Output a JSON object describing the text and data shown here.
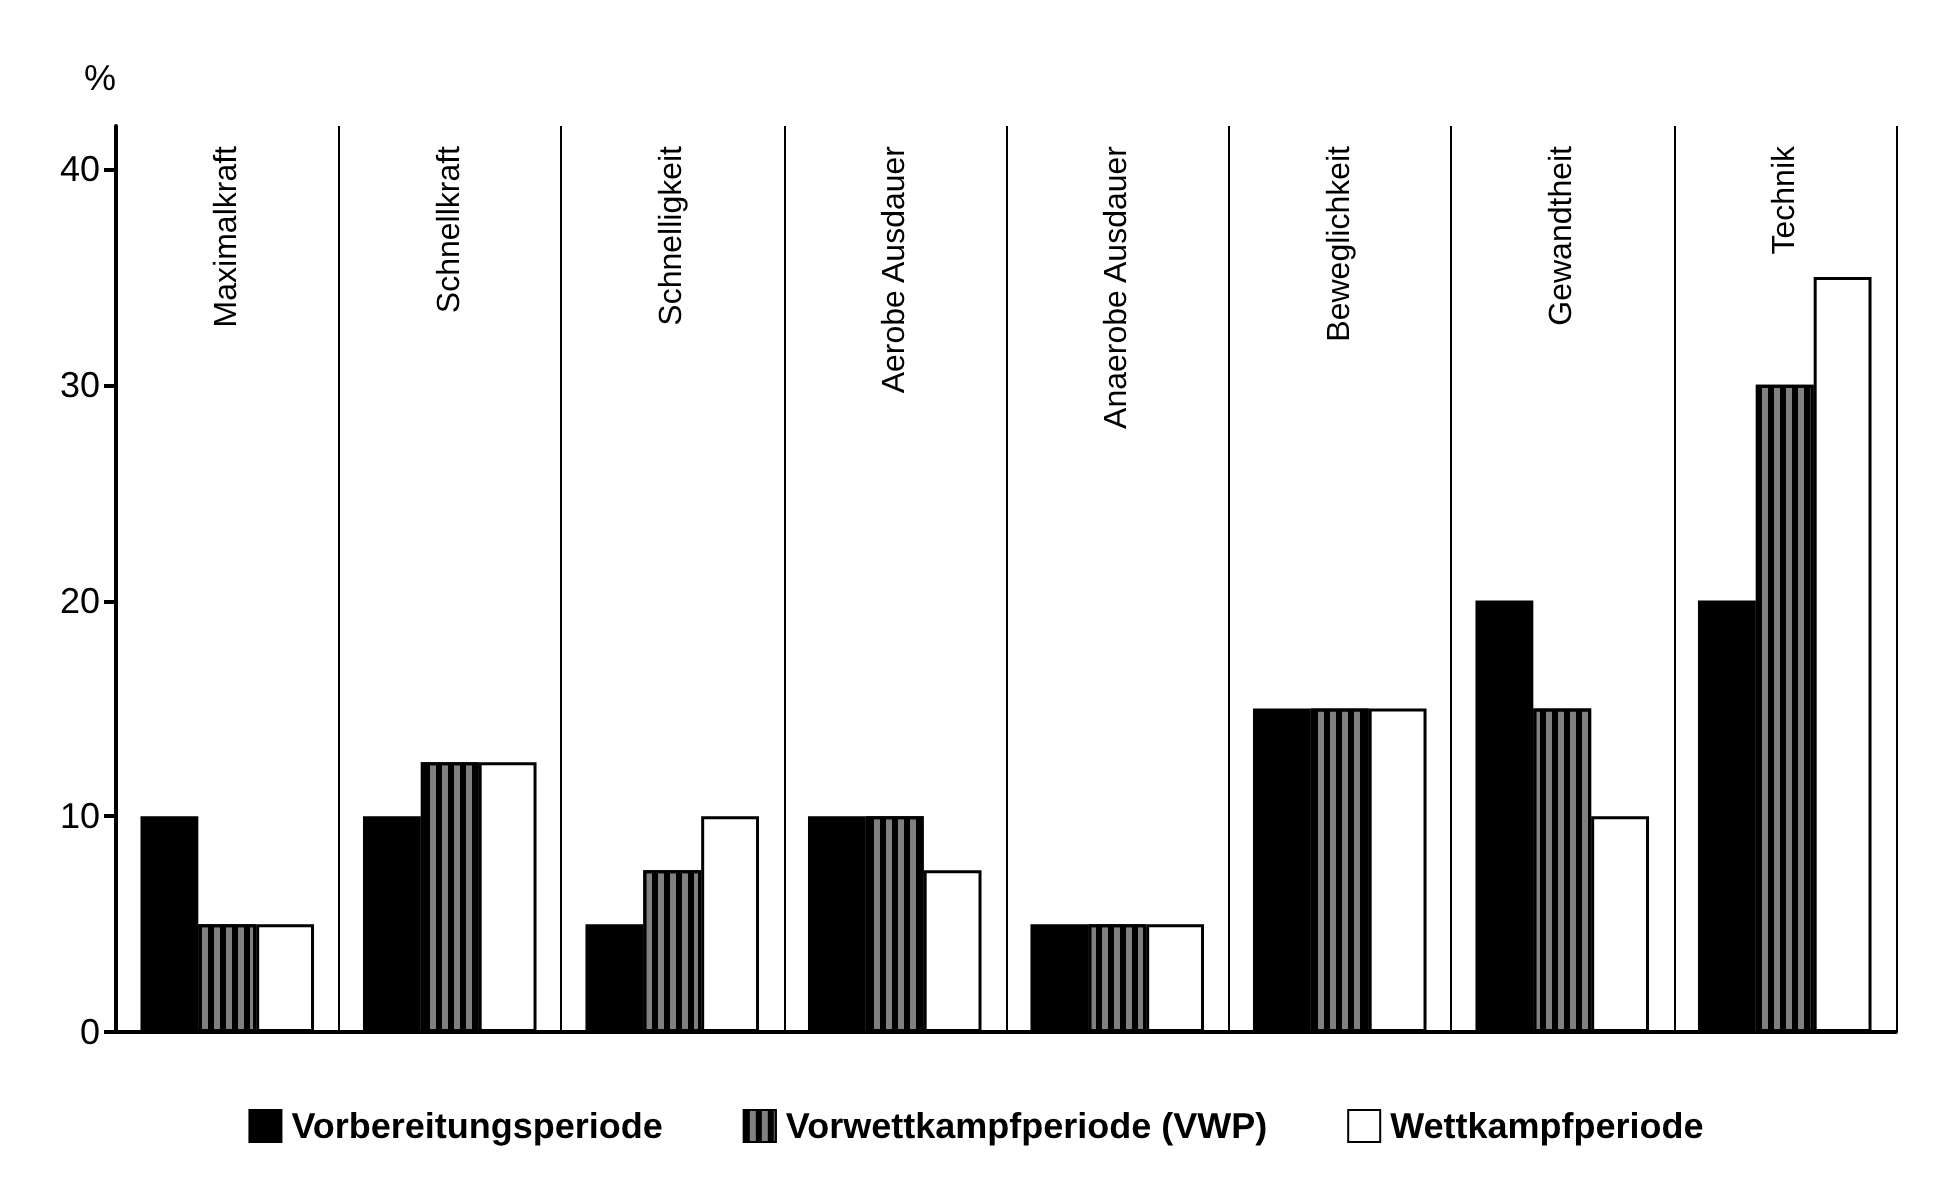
{
  "chart_data": {
    "type": "bar",
    "ylabel": "%",
    "categories": [
      "Maximalkraft",
      "Schnellkraft",
      "Schnelligkeit",
      "Aerobe Ausdauer",
      "Anaerobe Ausdauer",
      "Beweglichkeit",
      "Gewandtheit",
      "Technik"
    ],
    "series": [
      {
        "name": "Vorbereitungsperiode",
        "color": "#000000",
        "values": [
          10,
          10,
          5,
          10,
          5,
          15,
          20,
          20
        ]
      },
      {
        "name": "Vorwettkampfperiode (VWP)",
        "color": "#808080",
        "values": [
          5,
          12.5,
          7.5,
          10,
          5,
          15,
          15,
          30
        ]
      },
      {
        "name": "Wettkampfperiode",
        "color": "#ffffff",
        "values": [
          5,
          12.5,
          10,
          7.5,
          5,
          15,
          10,
          35
        ]
      }
    ],
    "ylim": [
      0,
      42
    ],
    "yticks": [
      0,
      10,
      20,
      30,
      40
    ],
    "grid": "x",
    "legend": "bottom"
  }
}
